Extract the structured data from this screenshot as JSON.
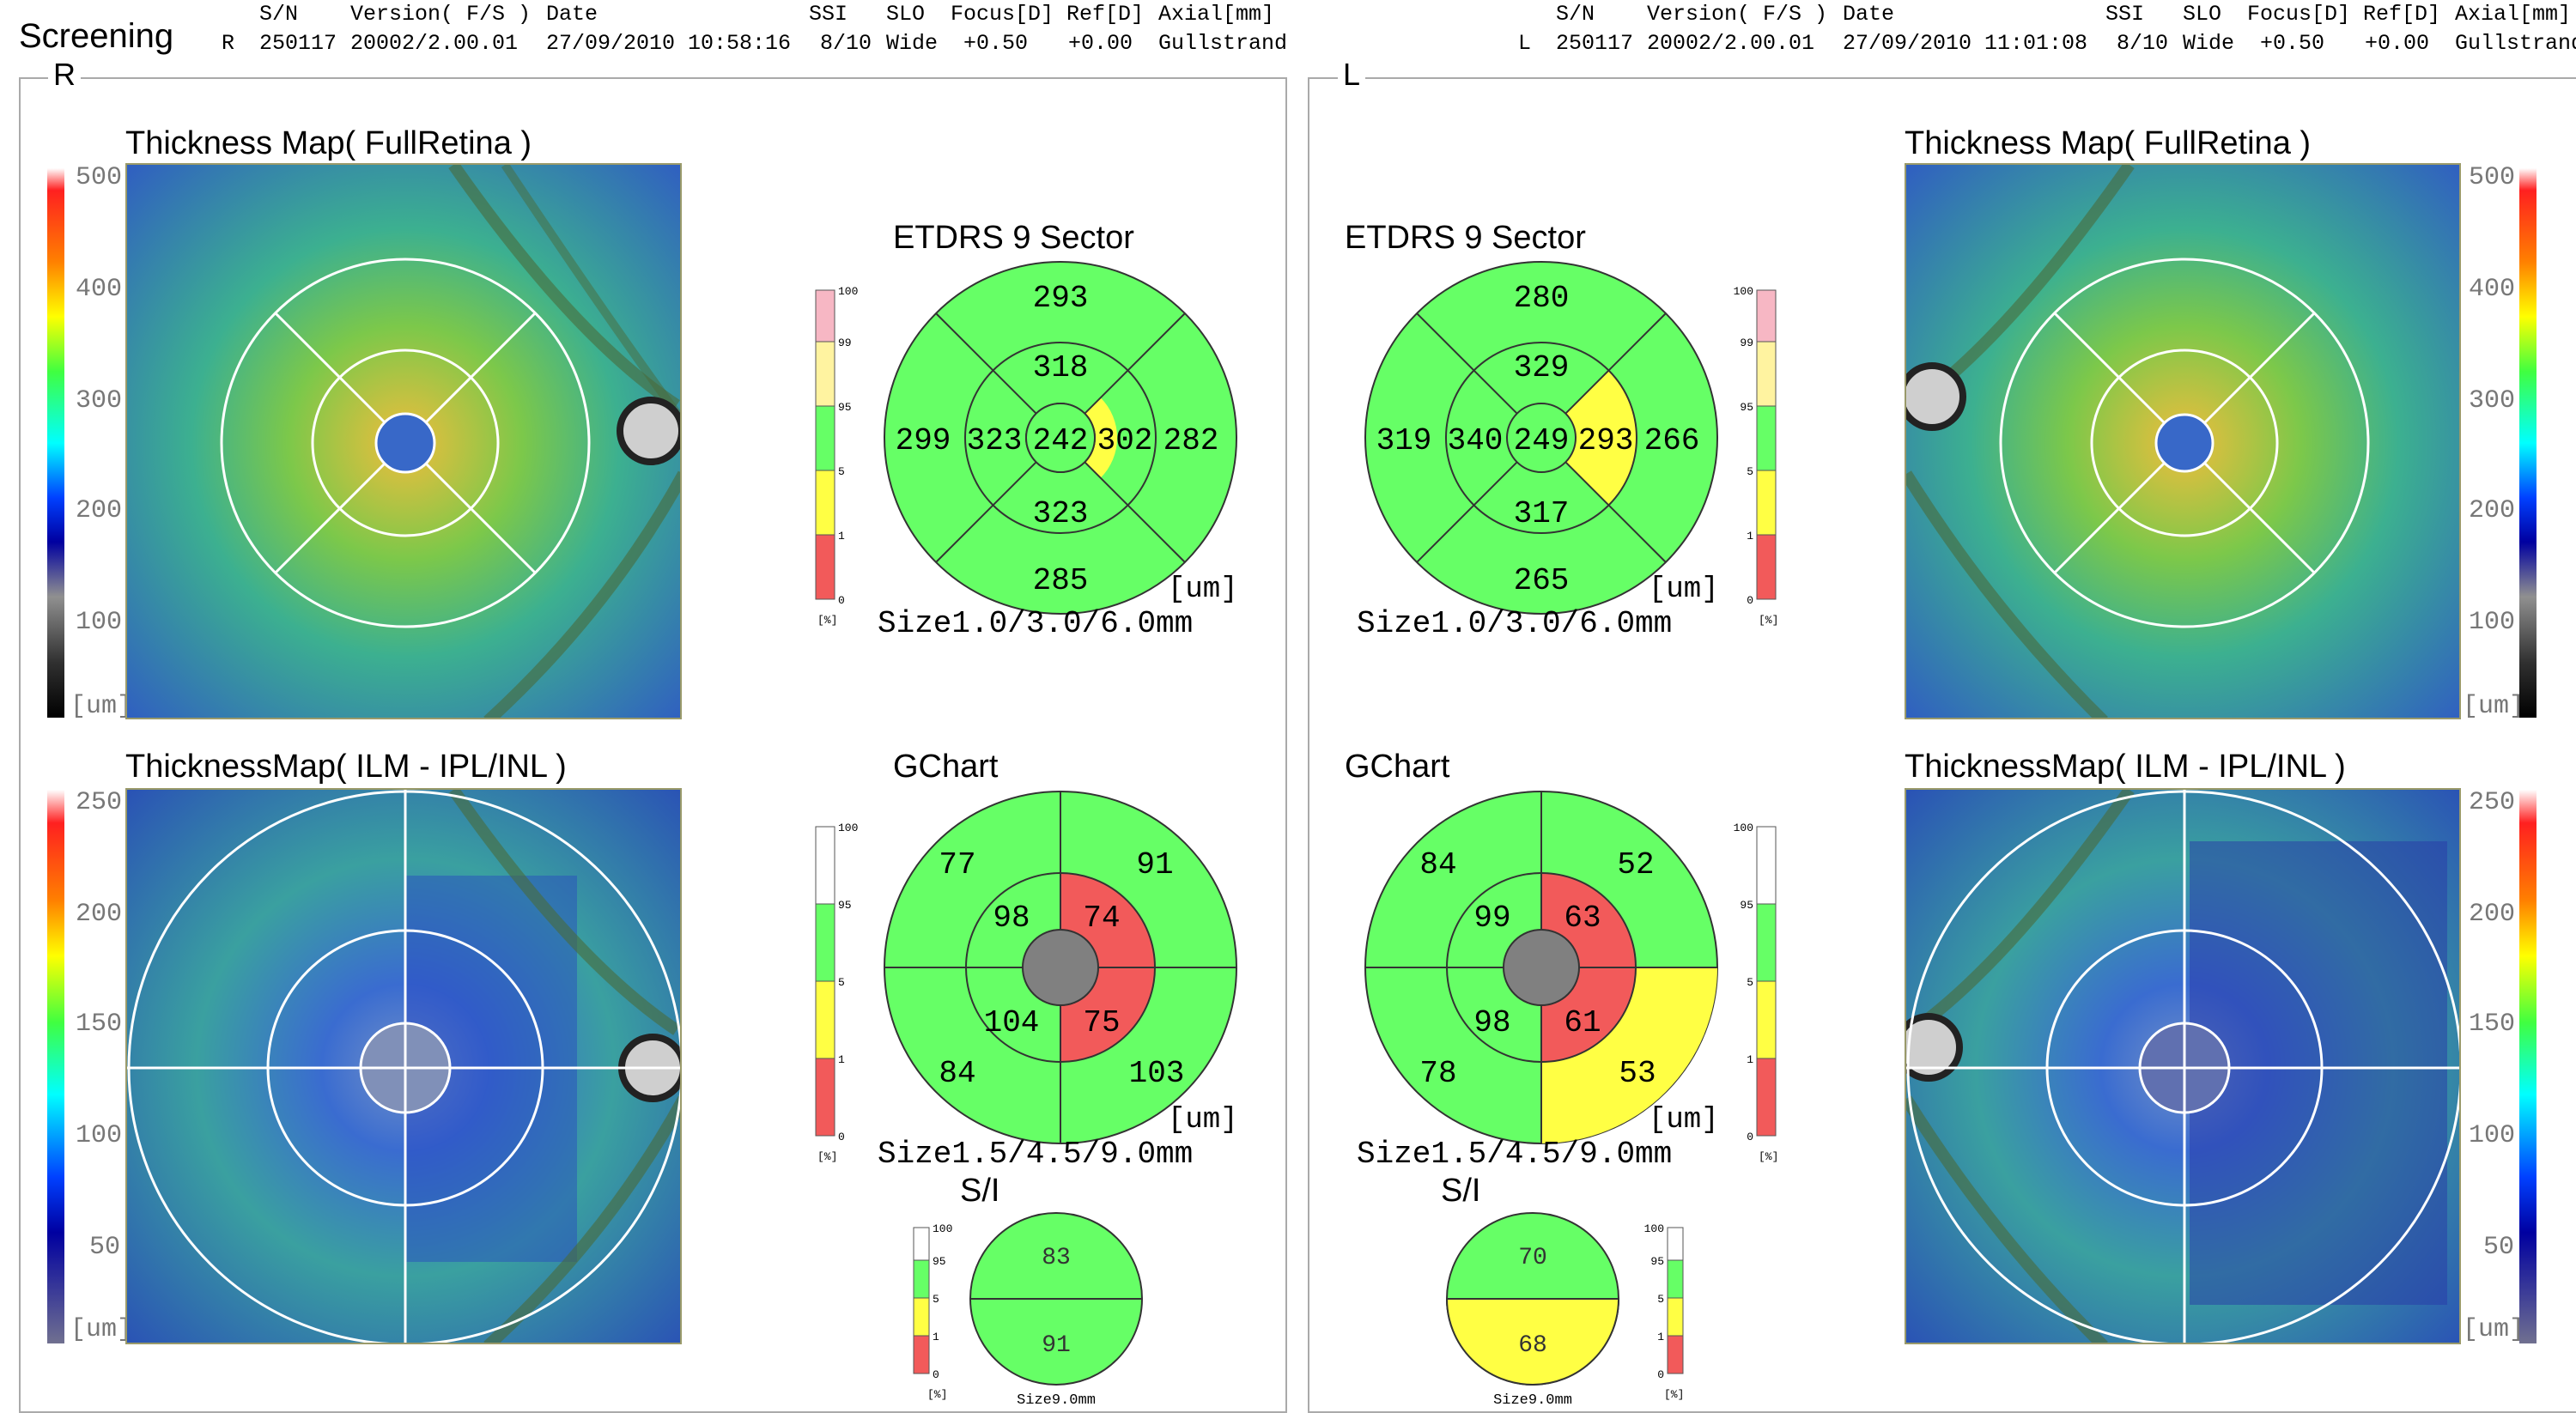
{
  "app": {
    "title": "Screening"
  },
  "header_labels": {
    "sn": "S/N",
    "version": "Version( F/S )",
    "date": "Date",
    "ssi": "SSI",
    "slo": "SLO",
    "focus": "Focus[D]",
    "ref": "Ref[D]",
    "axial": "Axial[mm]"
  },
  "right_eye": {
    "side": "R",
    "sn": "250117",
    "version": "20002/2.00.01",
    "date": "27/09/2010 10:58:16",
    "ssi": "8/10",
    "slo": "Wide",
    "focus": "+0.50",
    "ref": "+0.00",
    "axial": "Gullstrand",
    "etdrs": {
      "center": "242",
      "inner_sup": "318",
      "inner_nas": "302",
      "inner_inf": "323",
      "inner_tmp": "323",
      "outer_sup": "293",
      "outer_nas": "282",
      "outer_inf": "285",
      "outer_tmp": "299"
    },
    "gchart": {
      "st_out": "77",
      "sn_out": "91",
      "it_out": "84",
      "in_out": "103",
      "st_in": "98",
      "sn_in": "74",
      "it_in": "104",
      "in_in": "75"
    },
    "si": {
      "sup": "83",
      "inf": "91"
    }
  },
  "left_eye": {
    "side": "L",
    "sn": "250117",
    "version": "20002/2.00.01",
    "date": "27/09/2010 11:01:08",
    "ssi": "8/10",
    "slo": "Wide",
    "focus": "+0.50",
    "ref": "+0.00",
    "axial": "Gullstrand",
    "etdrs": {
      "center": "249",
      "inner_sup": "329",
      "inner_nas": "293",
      "inner_inf": "317",
      "inner_tmp": "340",
      "outer_sup": "280",
      "outer_nas": "266",
      "outer_inf": "265",
      "outer_tmp": "319"
    },
    "gchart": {
      "st_out": "84",
      "sn_out": "52",
      "it_out": "78",
      "in_out": "53",
      "st_in": "99",
      "sn_in": "63",
      "it_in": "98",
      "in_in": "61"
    },
    "si": {
      "sup": "70",
      "inf": "68"
    }
  },
  "labels": {
    "thickness_full": "Thickness Map( FullRetina )",
    "thickness_ilm": "ThicknessMap( ILM - IPL/INL )",
    "etdrs_title": "ETDRS 9 Sector",
    "gchart_title": "GChart",
    "si_title": "S/I",
    "um": "[um]",
    "pct": "[%]",
    "size_etdrs": "Size1.0/3.0/6.0mm",
    "size_gchart": "Size1.5/4.5/9.0mm",
    "size_si": "Size9.0mm"
  },
  "colorbar_full": [
    "500",
    "400",
    "300",
    "200",
    "100",
    "[um]"
  ],
  "colorbar_ilm": [
    "250",
    "200",
    "150",
    "100",
    "50",
    "[um]"
  ],
  "scale_etdrs": [
    "100",
    "99",
    "95",
    "5",
    "1",
    "0"
  ],
  "scale_gchart": [
    "100",
    "95",
    "5",
    "1",
    "0"
  ],
  "colors": {
    "normal": "#66ff66",
    "borderline": "#ffff44",
    "abnormal": "#f25a5a",
    "top": "#f7b7c4",
    "yellow_light": "#fff3a0",
    "white": "#ffffff",
    "center_gray": "#808080"
  }
}
